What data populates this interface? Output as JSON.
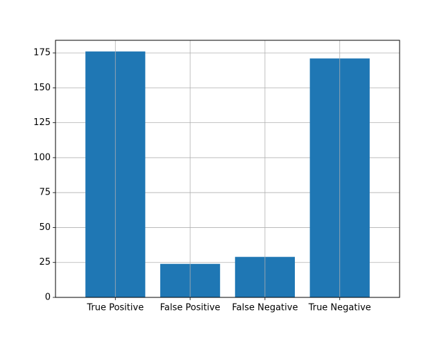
{
  "chart_data": {
    "type": "bar",
    "title": "",
    "xlabel": "",
    "ylabel": "",
    "categories": [
      "True Positive",
      "False Positive",
      "False Negative",
      "True Negative"
    ],
    "values": [
      176,
      24,
      29,
      171
    ],
    "ylim": [
      0,
      184
    ],
    "yticks": [
      0,
      25,
      50,
      75,
      100,
      125,
      150,
      175
    ],
    "ytick_labels": [
      "0",
      "25",
      "50",
      "75",
      "100",
      "125",
      "150",
      "175"
    ],
    "grid": true,
    "legend": "none",
    "colors": {
      "bar": "#1f77b4",
      "grid": "#b0b0b0",
      "axis": "#000000",
      "background": "#ffffff"
    }
  }
}
